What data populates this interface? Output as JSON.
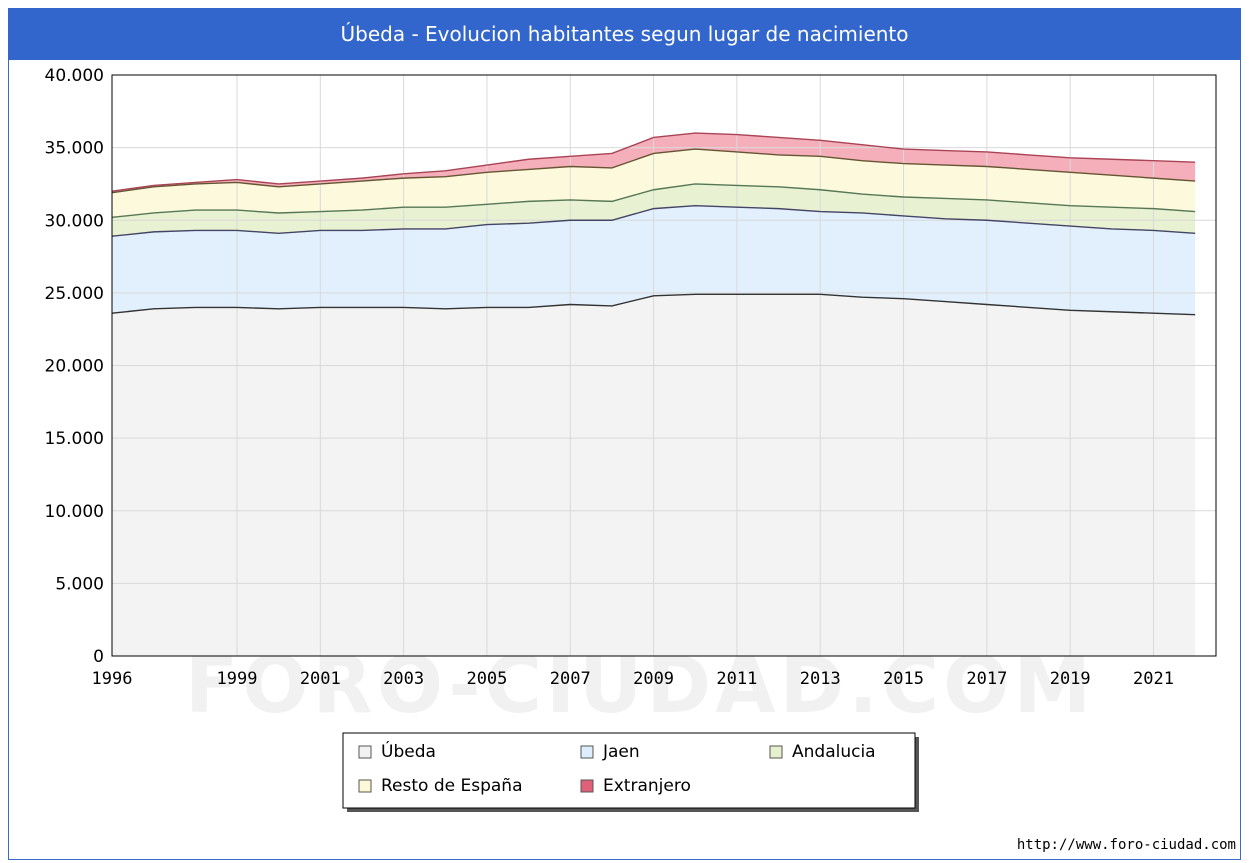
{
  "chart_data": {
    "type": "area",
    "title": "Úbeda - Evolucion habitantes segun lugar de nacimiento",
    "x": [
      1996,
      1997,
      1998,
      1999,
      2000,
      2001,
      2002,
      2003,
      2004,
      2005,
      2006,
      2007,
      2008,
      2009,
      2010,
      2011,
      2012,
      2013,
      2014,
      2015,
      2016,
      2017,
      2018,
      2019,
      2020,
      2021,
      2022
    ],
    "x_tick_labels": [
      "1996",
      "1999",
      "2001",
      "2003",
      "2005",
      "2007",
      "2009",
      "2011",
      "2013",
      "2015",
      "2017",
      "2019",
      "2021"
    ],
    "y_tick_labels": [
      "0",
      "5.000",
      "10.000",
      "15.000",
      "20.000",
      "25.000",
      "30.000",
      "35.000",
      "40.000"
    ],
    "ylim": [
      0,
      40000
    ],
    "stacked_totals": true,
    "series": [
      {
        "name": "Úbeda",
        "color": "#f2f2f2",
        "line": "#333333",
        "values": [
          23600,
          23900,
          24000,
          24000,
          23900,
          24000,
          24000,
          24000,
          23900,
          24000,
          24000,
          24200,
          24100,
          24800,
          24900,
          24900,
          24900,
          24900,
          24700,
          24600,
          24400,
          24200,
          24000,
          23800,
          23700,
          23600,
          23500
        ]
      },
      {
        "name": "Jaen",
        "color": "#deeefc",
        "line": "#444466",
        "values": [
          28900,
          29200,
          29300,
          29300,
          29100,
          29300,
          29300,
          29400,
          29400,
          29700,
          29800,
          30000,
          30000,
          30800,
          31000,
          30900,
          30800,
          30600,
          30500,
          30300,
          30100,
          30000,
          29800,
          29600,
          29400,
          29300,
          29100
        ]
      },
      {
        "name": "Andalucia",
        "color": "#e6f0cc",
        "line": "#557755",
        "values": [
          30200,
          30500,
          30700,
          30700,
          30500,
          30600,
          30700,
          30900,
          30900,
          31100,
          31300,
          31400,
          31300,
          32100,
          32500,
          32400,
          32300,
          32100,
          31800,
          31600,
          31500,
          31400,
          31200,
          31000,
          30900,
          30800,
          30600
        ]
      },
      {
        "name": "Resto de España",
        "color": "#fdf8d8",
        "line": "#665533",
        "values": [
          31900,
          32300,
          32500,
          32600,
          32300,
          32500,
          32700,
          32900,
          33000,
          33300,
          33500,
          33700,
          33600,
          34600,
          34900,
          34700,
          34500,
          34400,
          34100,
          33900,
          33800,
          33700,
          33500,
          33300,
          33100,
          32900,
          32700
        ]
      },
      {
        "name": "Extranjero",
        "color": "#f4a6b4",
        "line": "#aa4455",
        "values": [
          32000,
          32400,
          32600,
          32800,
          32500,
          32700,
          32900,
          33200,
          33400,
          33800,
          34200,
          34400,
          34600,
          35700,
          36000,
          35900,
          35700,
          35500,
          35200,
          34900,
          34800,
          34700,
          34500,
          34300,
          34200,
          34100,
          34000
        ]
      }
    ],
    "legend_position": "bottom"
  },
  "legend": [
    {
      "label": "Úbeda",
      "color": "#f2f2f2"
    },
    {
      "label": "Jaen",
      "color": "#deeefc"
    },
    {
      "label": "Andalucia",
      "color": "#e6f0cc"
    },
    {
      "label": "Resto de España",
      "color": "#fdf8d8"
    },
    {
      "label": "Extranjero",
      "color": "#e0607a"
    }
  ],
  "watermark": "FORO-CIUDAD.COM",
  "source_url": "http://www.foro-ciudad.com"
}
